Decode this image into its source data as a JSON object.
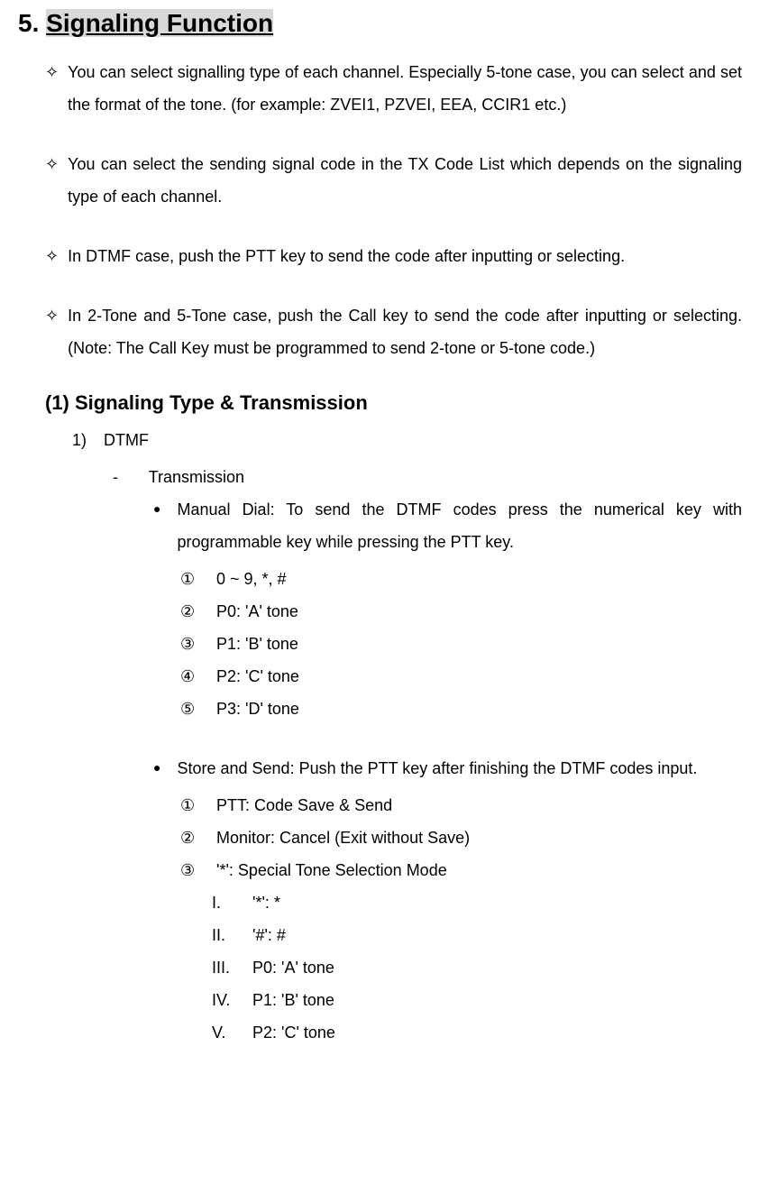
{
  "section": {
    "number": "5.",
    "title": "Signaling Function"
  },
  "diamonds": [
    "You can select signalling type of each channel. Especially 5-tone case, you can select and set the format of the tone. (for example: ZVEI1, PZVEI, EEA, CCIR1 etc.)",
    "You can select the sending signal code in the TX Code List which depends on the signaling type of each channel.",
    "In DTMF case, push the PTT key to send the code after inputting or selecting.",
    "In 2-Tone and 5-Tone case, push the Call key to send the code after inputting or selecting. (Note: The Call Key must be programmed to send 2-tone or 5-tone code.)"
  ],
  "subsection": {
    "title": "(1) Signaling Type & Transmission"
  },
  "item1": {
    "num": "1)",
    "label": "DTMF"
  },
  "dash1": {
    "marker": "-",
    "label": "Transmission"
  },
  "bullet1": {
    "text": "Manual Dial: To send the DTMF codes press the numerical key with programmable key while pressing the PTT key."
  },
  "circled1": [
    {
      "num": "①",
      "text": "0 ~ 9, *, #"
    },
    {
      "num": "②",
      "text": "P0: 'A' tone"
    },
    {
      "num": "③",
      "text": "P1: 'B' tone"
    },
    {
      "num": "④",
      "text": "P2: 'C' tone"
    },
    {
      "num": "⑤",
      "text": "P3: 'D' tone"
    }
  ],
  "bullet2": {
    "text": "Store and Send: Push the PTT key after finishing the DTMF codes input."
  },
  "circled2": [
    {
      "num": "①",
      "text": "PTT: Code Save & Send"
    },
    {
      "num": "②",
      "text": "Monitor: Cancel (Exit without Save)"
    },
    {
      "num": "③",
      "text": "'*': Special Tone Selection Mode"
    }
  ],
  "roman": [
    {
      "num": "I.",
      "text": "'*': *"
    },
    {
      "num": "II.",
      "text": "'#': #"
    },
    {
      "num": "III.",
      "text": "P0: 'A' tone"
    },
    {
      "num": "IV.",
      "text": "P1: 'B' tone"
    },
    {
      "num": "V.",
      "text": "P2: 'C' tone"
    }
  ],
  "markers": {
    "diamond": "✧",
    "disc": "●"
  }
}
